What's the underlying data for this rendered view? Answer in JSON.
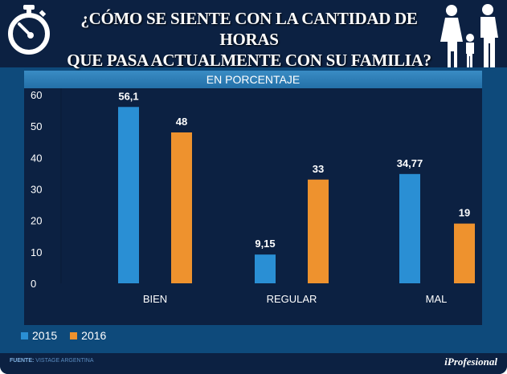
{
  "header": {
    "title_line1": "¿CÓMO SE SIENTE CON LA CANTIDAD DE HORAS",
    "title_line2": "QUE PASA ACTUALMENTE CON SU FAMILIA?",
    "left_icon": "stopwatch-icon",
    "right_icon": "family-icon"
  },
  "footer": {
    "source_label": "FUENTE:",
    "source_value": "VISTAGE ARGENTINA",
    "logo": "iProfesional"
  },
  "colors": {
    "2015": "#2a8fd4",
    "2016": "#ee922e",
    "background": "#0e4a7b",
    "panel": "#0c2142"
  },
  "chart_data": {
    "type": "bar",
    "title": "EN PORCENTAJE",
    "categories": [
      "BIEN",
      "REGULAR",
      "MAL"
    ],
    "series": [
      {
        "name": "2015",
        "values": [
          56.1,
          9.15,
          34.77
        ],
        "labels": [
          "56,1",
          "9,15",
          "34,77"
        ]
      },
      {
        "name": "2016",
        "values": [
          48,
          33,
          19
        ],
        "labels": [
          "48",
          "33",
          "19"
        ]
      }
    ],
    "ylim": [
      0,
      60
    ],
    "yticks": [
      0,
      10,
      20,
      30,
      40,
      50,
      60
    ],
    "grid": false,
    "legend": "bottom-left"
  }
}
